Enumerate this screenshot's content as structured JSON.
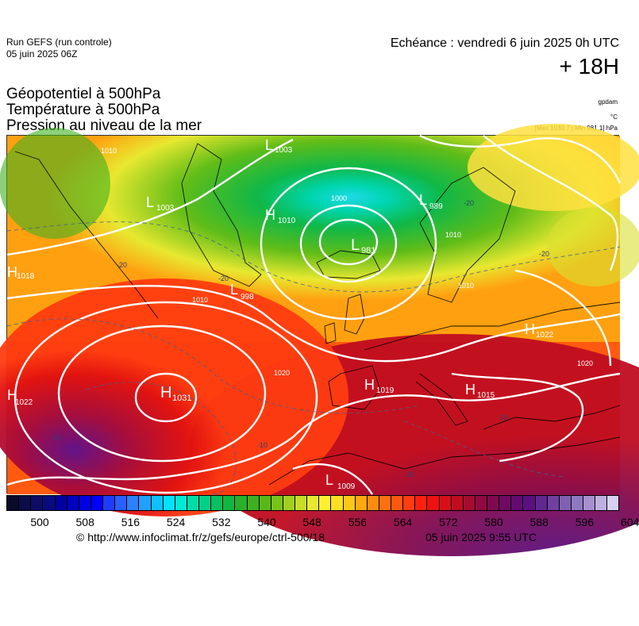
{
  "header": {
    "run_name": "Run GEFS (run controle)",
    "run_date": "05 juin 2025 06Z",
    "valid_time": "Echéance : vendredi 6 juin 2025 0h UTC",
    "lead_time": "+ 18H"
  },
  "titles": {
    "geopotential": "Géopotentiel à 500hPa",
    "temperature": "Température à 500hPa",
    "pressure": "Pression au niveau de la mer"
  },
  "units": {
    "geopotential": "gpdam",
    "temperature": "°C",
    "pressure_range": "[Max 1030.7 | Min 981.1] hPa"
  },
  "map": {
    "pressure_centers": [
      {
        "type": "H",
        "value": "1031"
      },
      {
        "type": "L",
        "value": "981"
      },
      {
        "type": "L",
        "value": "1003"
      },
      {
        "type": "L",
        "value": "1003"
      },
      {
        "type": "H",
        "value": "1010"
      },
      {
        "type": "L",
        "value": "989"
      },
      {
        "type": "L",
        "value": "998"
      },
      {
        "type": "H",
        "value": "1018"
      },
      {
        "type": "H",
        "value": "1022"
      },
      {
        "type": "H",
        "value": "1022"
      },
      {
        "type": "H",
        "value": "1019"
      },
      {
        "type": "H",
        "value": "1015"
      },
      {
        "type": "L",
        "value": "1009"
      }
    ],
    "isobar_labels": [
      "1000",
      "1010",
      "1010",
      "1020",
      "1020",
      "1010",
      "1010"
    ],
    "temperature_labels": [
      "-20",
      "-20",
      "-20",
      "-20",
      "-10",
      "-10",
      "-10",
      "-10"
    ]
  },
  "colorbar": {
    "colors": [
      "#0a0a2a",
      "#0c0c4a",
      "#0d0d66",
      "#0a0a80",
      "#0000a0",
      "#0000c0",
      "#0000e0",
      "#0000ff",
      "#1e3cff",
      "#2860ff",
      "#2a80ff",
      "#20a0ff",
      "#10c0ff",
      "#00e0ff",
      "#00e8d8",
      "#00dca8",
      "#00d088",
      "#08c060",
      "#10b840",
      "#28b028",
      "#40b020",
      "#58b818",
      "#78c418",
      "#a0d020",
      "#c8dc28",
      "#e8e830",
      "#fff030",
      "#ffe020",
      "#ffc818",
      "#ffa810",
      "#ff8c10",
      "#ff7010",
      "#ff5810",
      "#ff3c10",
      "#ff2010",
      "#f01010",
      "#d80e18",
      "#c00c20",
      "#a80a30",
      "#900a40",
      "#800a50",
      "#700a60",
      "#640a70",
      "#5a1080",
      "#602890",
      "#7040a0",
      "#8060b0",
      "#9078c0",
      "#a890d0",
      "#c0b0e0",
      "#d8d0f0"
    ],
    "tick_labels": [
      "500",
      "508",
      "516",
      "524",
      "532",
      "540",
      "548",
      "556",
      "564",
      "572",
      "580",
      "588",
      "596",
      "604"
    ]
  },
  "footer": {
    "copyright": "© http://www.infoclimat.fr/z/gefs/europe/ctrl-500/18",
    "issued": "05 juin 2025  9:55 UTC"
  }
}
